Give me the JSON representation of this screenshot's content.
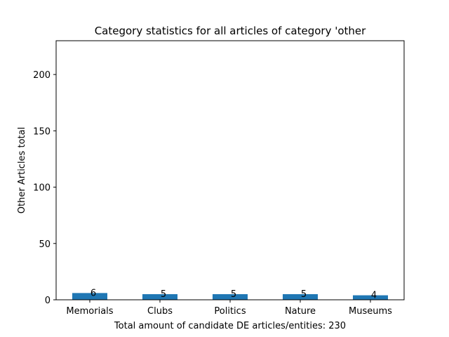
{
  "chart_data": {
    "type": "bar",
    "title": "Category statistics for all articles of category 'other",
    "xlabel": "Total amount of candidate DE articles/entities: 230",
    "ylabel": "Other Articles total",
    "categories": [
      "Memorials",
      "Clubs",
      "Politics",
      "Nature",
      "Museums"
    ],
    "values": [
      6,
      5,
      5,
      5,
      4
    ],
    "data_labels": [
      "6",
      "5",
      "5",
      "5",
      "4"
    ],
    "ylim": [
      0,
      230
    ],
    "yticks": [
      0,
      50,
      100,
      150,
      200
    ],
    "bar_color": "#1f77b4",
    "grid": false,
    "legend": "none"
  }
}
